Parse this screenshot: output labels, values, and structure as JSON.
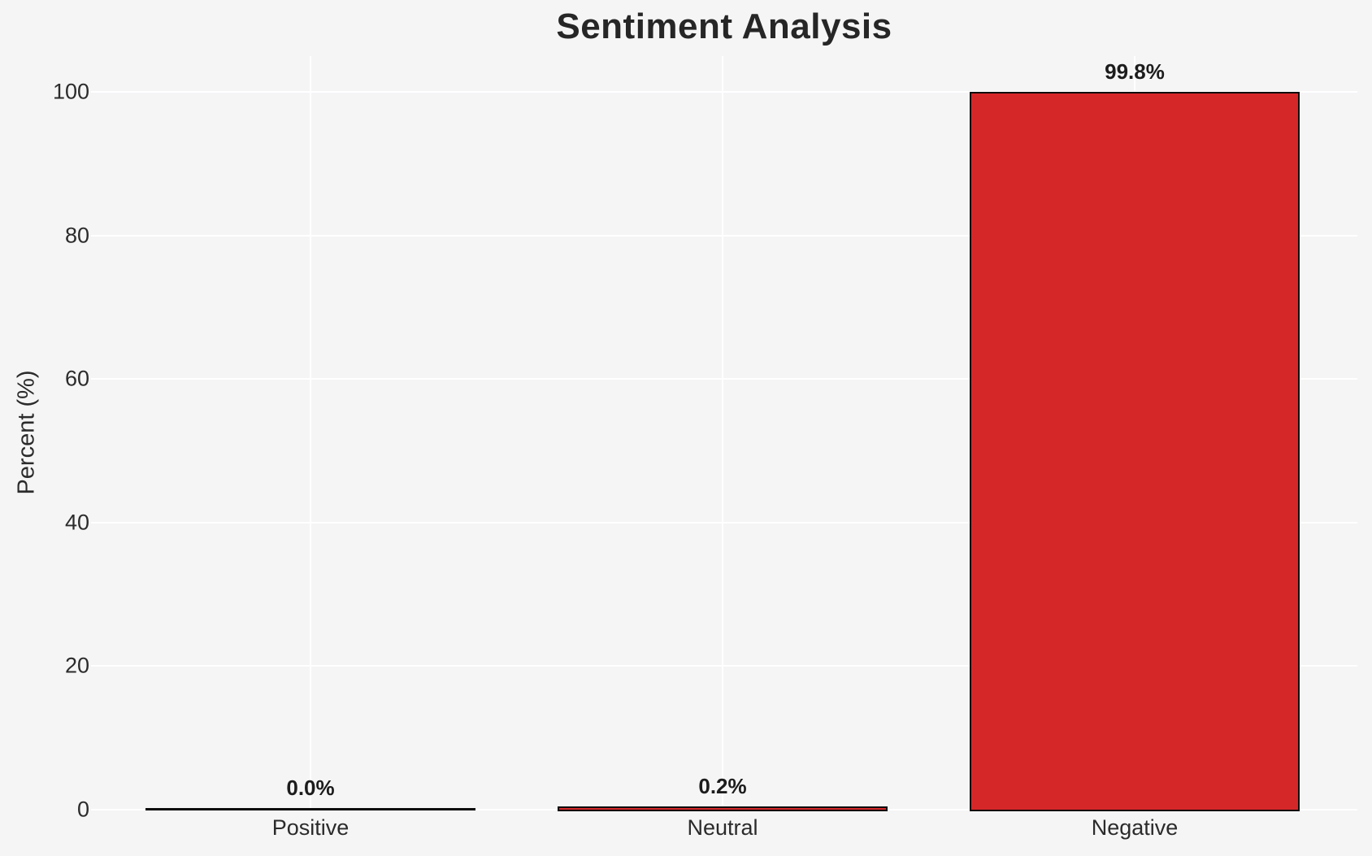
{
  "chart_data": {
    "type": "bar",
    "title": "Sentiment Analysis",
    "xlabel": "",
    "ylabel": "Percent (%)",
    "categories": [
      "Positive",
      "Neutral",
      "Negative"
    ],
    "values": [
      0.0,
      0.2,
      99.8
    ],
    "bar_labels": [
      "0.0%",
      "0.2%",
      "99.8%"
    ],
    "yticks": [
      0,
      20,
      40,
      60,
      80,
      100
    ],
    "ylim": [
      0,
      105
    ],
    "grid": "on",
    "legend": "none",
    "colors": {
      "bar_fill": "#d62728",
      "bar_edge": "#0d0d0d",
      "background": "#f5f5f6",
      "gridline": "#ffffff",
      "text": "#2b2b2b"
    }
  }
}
